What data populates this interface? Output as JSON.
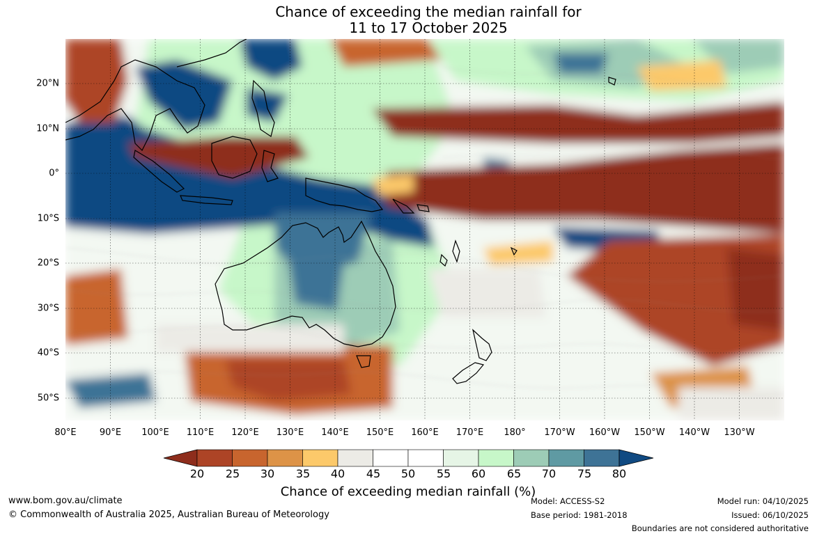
{
  "title": {
    "line1": "Chance of exceeding the median rainfall for",
    "line2": "11 to 17 October 2025"
  },
  "map": {
    "lon_labels": [
      "80°E",
      "90°E",
      "100°E",
      "110°E",
      "120°E",
      "130°E",
      "140°E",
      "150°E",
      "160°E",
      "170°E",
      "180°",
      "170°W",
      "160°W",
      "150°W",
      "140°W",
      "130°W"
    ],
    "lat_labels": [
      "20°N",
      "10°N",
      "0°",
      "10°S",
      "20°S",
      "30°S",
      "40°S",
      "50°S"
    ]
  },
  "colorbar": {
    "ticks": [
      "20",
      "25",
      "30",
      "35",
      "40",
      "45",
      "50",
      "55",
      "60",
      "65",
      "70",
      "75",
      "80"
    ],
    "colors": [
      "#8e2d1c",
      "#ad4426",
      "#c8652e",
      "#dd9347",
      "#fcc96a",
      "#ecebe6",
      "#ffffff",
      "#ffffff",
      "#e6f5e6",
      "#c7f7c9",
      "#9dccb6",
      "#5f9aa3",
      "#3e7396",
      "#104a82"
    ],
    "label": "Chance of exceeding median rainfall (%)"
  },
  "footer": {
    "url": "www.bom.gov.au/climate",
    "copyright": "© Commonwealth of Australia 2025, Australian Bureau of Meteorology",
    "model": "Model: ACCESS-S2",
    "base_period": "Base period: 1981-2018",
    "model_run": "Model run: 04/10/2025",
    "issued": "Issued: 06/10/2025",
    "disclaimer": "Boundaries are not considered authoritative"
  }
}
